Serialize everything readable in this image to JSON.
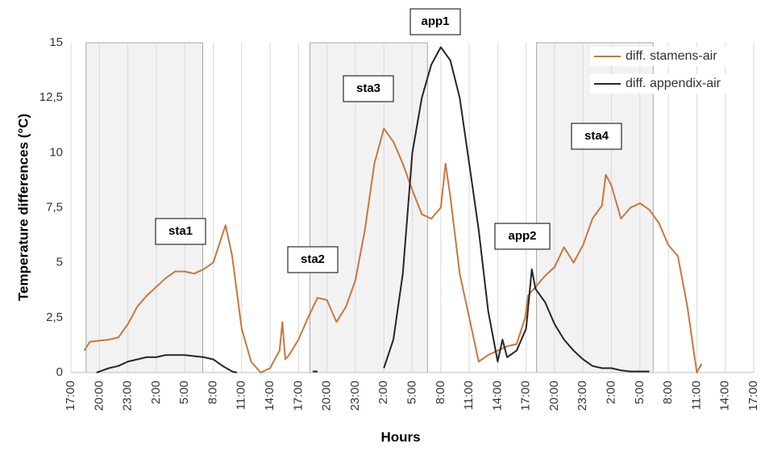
{
  "chart_data": {
    "type": "line",
    "y_label": "Temperature differences (°C)",
    "x_label": "Hours",
    "xlim": [
      0,
      72
    ],
    "xticks": [
      {
        "value": 0,
        "label": "17:00"
      },
      {
        "value": 3,
        "label": "20:00"
      },
      {
        "value": 6,
        "label": "23:00"
      },
      {
        "value": 9,
        "label": "2:00"
      },
      {
        "value": 12,
        "label": "5:00"
      },
      {
        "value": 15,
        "label": "8:00"
      },
      {
        "value": 18,
        "label": "11:00"
      },
      {
        "value": 21,
        "label": "14:00"
      },
      {
        "value": 24,
        "label": "17:00"
      },
      {
        "value": 27,
        "label": "20:00"
      },
      {
        "value": 30,
        "label": "23:00"
      },
      {
        "value": 33,
        "label": "2:00"
      },
      {
        "value": 36,
        "label": "5:00"
      },
      {
        "value": 39,
        "label": "8:00"
      },
      {
        "value": 42,
        "label": "11:00"
      },
      {
        "value": 45,
        "label": "14:00"
      },
      {
        "value": 48,
        "label": "17:00"
      },
      {
        "value": 51,
        "label": "20:00"
      },
      {
        "value": 54,
        "label": "23:00"
      },
      {
        "value": 57,
        "label": "2:00"
      },
      {
        "value": 60,
        "label": "5:00"
      },
      {
        "value": 63,
        "label": "8:00"
      },
      {
        "value": 66,
        "label": "11:00"
      },
      {
        "value": 69,
        "label": "14:00"
      },
      {
        "value": 72,
        "label": "17:00"
      }
    ],
    "ylim": [
      0,
      15
    ],
    "yticks": [
      0,
      {
        "value": 2.5,
        "label": "2,5"
      },
      5,
      {
        "value": 7.5,
        "label": "7,5"
      },
      10,
      {
        "value": 12.5,
        "label": "12,5"
      },
      15
    ],
    "grid": "x",
    "legend": "upper right",
    "shaded_regions": [
      [
        1.6,
        13.9
      ],
      [
        25.2,
        37.6
      ],
      [
        49.1,
        61.4
      ]
    ],
    "annotations": [
      "sta1",
      "sta2",
      "sta3",
      "app1",
      "app2",
      "sta4"
    ],
    "series": [
      {
        "name": "diff. stamens-air",
        "color": "#c8773f",
        "x": [
          1.4,
          2,
          4,
          5,
          6,
          7,
          8,
          9,
          10,
          11,
          12,
          13,
          14,
          15,
          16.3,
          17,
          18,
          19,
          20,
          21,
          22,
          22.3,
          22.6,
          23,
          24,
          25,
          26,
          27,
          28,
          29,
          30,
          31,
          32,
          33,
          34,
          35,
          36,
          37,
          38,
          39,
          39.5,
          40,
          41,
          42,
          43,
          44,
          45,
          46,
          47,
          47.9,
          48.2,
          49,
          50,
          51,
          52,
          53,
          54,
          55,
          56,
          56.4,
          57,
          58,
          59,
          60,
          61,
          62,
          63,
          64,
          65,
          66,
          66.5
        ],
        "values": [
          1.0,
          1.4,
          1.5,
          1.6,
          2.2,
          3.0,
          3.5,
          3.9,
          4.3,
          4.6,
          4.6,
          4.5,
          4.7,
          5.0,
          6.7,
          5.3,
          2.0,
          0.5,
          0,
          0.2,
          1.0,
          2.3,
          0.6,
          0.8,
          1.5,
          2.5,
          3.4,
          3.3,
          2.3,
          3.0,
          4.2,
          6.5,
          9.5,
          11.1,
          10.5,
          9.5,
          8.3,
          7.2,
          7.0,
          7.5,
          9.5,
          8.0,
          4.5,
          2.5,
          0.5,
          0.8,
          1.0,
          1.2,
          1.3,
          2.5,
          3.5,
          3.9,
          4.4,
          4.8,
          5.7,
          5.0,
          5.8,
          7.0,
          7.6,
          9.0,
          8.5,
          7.0,
          7.5,
          7.7,
          7.4,
          6.8,
          5.8,
          5.3,
          3.0,
          0,
          0.4
        ]
      },
      {
        "name": "diff. appendix-air",
        "color": "#262626",
        "x": [
          2.7,
          4,
          5,
          6,
          7,
          8,
          9,
          10,
          11,
          12,
          13,
          14,
          15,
          16,
          17,
          17.5,
          null,
          25.5,
          26,
          null,
          33,
          34,
          35,
          36,
          37,
          38,
          39,
          40,
          41,
          42,
          43,
          44,
          45,
          45.5,
          46,
          47,
          48,
          48.6,
          49,
          50,
          51,
          52,
          53,
          54,
          55,
          56,
          57,
          58,
          59,
          60,
          61
        ],
        "values": [
          0,
          0.2,
          0.3,
          0.5,
          0.6,
          0.7,
          0.7,
          0.8,
          0.8,
          0.8,
          0.75,
          0.7,
          0.6,
          0.3,
          0.05,
          0,
          null,
          0.05,
          0.05,
          null,
          0.2,
          1.5,
          4.5,
          10,
          12.5,
          14.0,
          14.8,
          14.2,
          12.5,
          9.5,
          6.5,
          2.8,
          0.5,
          1.5,
          0.7,
          1.0,
          2.0,
          4.7,
          3.8,
          3.2,
          2.2,
          1.5,
          1.0,
          0.6,
          0.3,
          0.2,
          0.2,
          0.1,
          0.05,
          0.05,
          0.05
        ]
      }
    ]
  }
}
